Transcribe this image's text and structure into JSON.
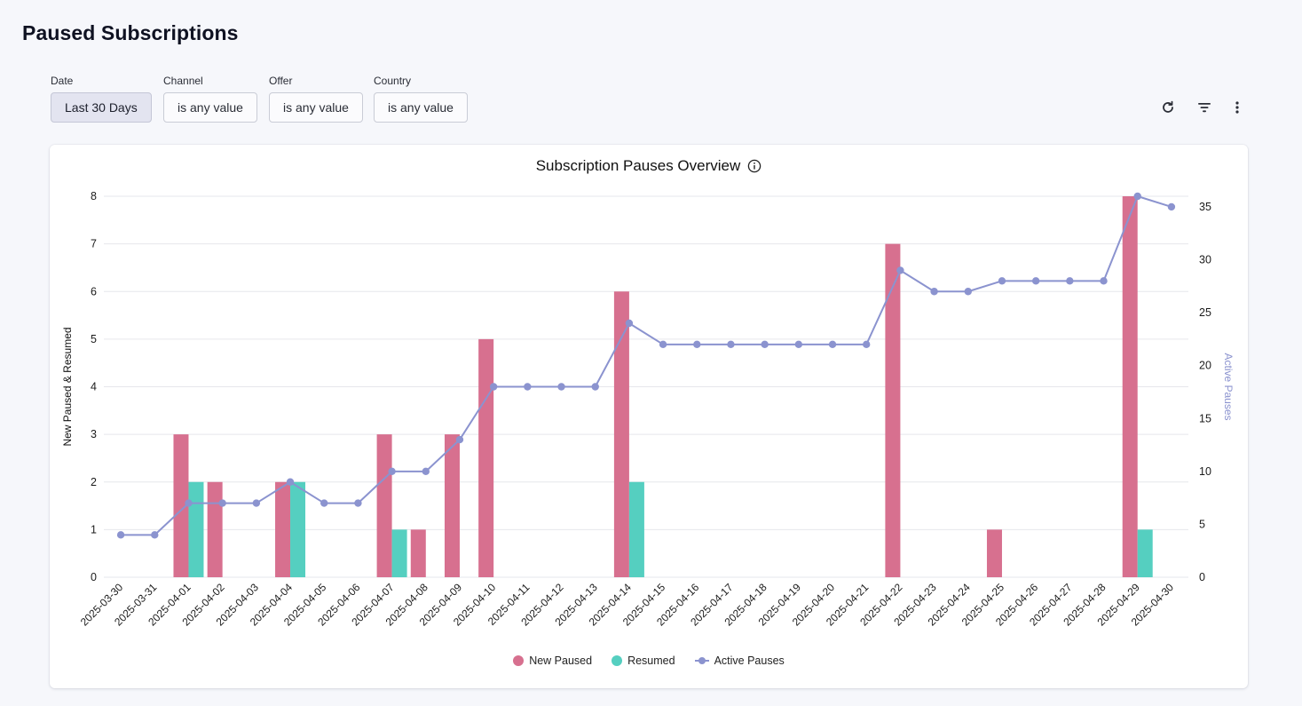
{
  "page": {
    "title": "Paused Subscriptions"
  },
  "filters": [
    {
      "label": "Date",
      "value": "Last 30 Days",
      "selected": true
    },
    {
      "label": "Channel",
      "value": "is any value",
      "selected": false
    },
    {
      "label": "Offer",
      "value": "is any value",
      "selected": false
    },
    {
      "label": "Country",
      "value": "is any value",
      "selected": false
    }
  ],
  "toolbar": {
    "icons": [
      "refresh-icon",
      "filter-icon",
      "more-vertical-icon"
    ]
  },
  "colors": {
    "new_paused": "#d7708f",
    "resumed": "#55cfc0",
    "active_pauses": "#8b93cf",
    "grid": "#e6e7ec"
  },
  "chart_data": {
    "type": "bar",
    "title": "Subscription Pauses Overview",
    "ylabel": "New Paused & Resumed",
    "y2label": "Active Pauses",
    "ylim": [
      0,
      8
    ],
    "y2lim": [
      0,
      36
    ],
    "yticks": [
      0,
      1,
      2,
      3,
      4,
      5,
      6,
      7,
      8
    ],
    "y2ticks": [
      0,
      5,
      10,
      15,
      20,
      25,
      30,
      35
    ],
    "grid": true,
    "legend_position": "bottom",
    "categories": [
      "2025-03-30",
      "2025-03-31",
      "2025-04-01",
      "2025-04-02",
      "2025-04-03",
      "2025-04-04",
      "2025-04-05",
      "2025-04-06",
      "2025-04-07",
      "2025-04-08",
      "2025-04-09",
      "2025-04-10",
      "2025-04-11",
      "2025-04-12",
      "2025-04-13",
      "2025-04-14",
      "2025-04-15",
      "2025-04-16",
      "2025-04-17",
      "2025-04-18",
      "2025-04-19",
      "2025-04-20",
      "2025-04-21",
      "2025-04-22",
      "2025-04-23",
      "2025-04-24",
      "2025-04-25",
      "2025-04-26",
      "2025-04-27",
      "2025-04-28",
      "2025-04-29",
      "2025-04-30"
    ],
    "series": [
      {
        "name": "New Paused",
        "type": "bar",
        "axis": "left",
        "values": [
          0,
          0,
          3,
          2,
          0,
          2,
          0,
          0,
          3,
          1,
          3,
          5,
          0,
          0,
          0,
          6,
          0,
          0,
          0,
          0,
          0,
          0,
          0,
          7,
          0,
          0,
          1,
          0,
          0,
          0,
          8,
          0
        ]
      },
      {
        "name": "Resumed",
        "type": "bar",
        "axis": "left",
        "values": [
          0,
          0,
          2,
          0,
          0,
          2,
          0,
          0,
          1,
          0,
          0,
          0,
          0,
          0,
          0,
          2,
          0,
          0,
          0,
          0,
          0,
          0,
          0,
          0,
          0,
          0,
          0,
          0,
          0,
          0,
          1,
          0
        ]
      },
      {
        "name": "Active Pauses",
        "type": "line",
        "axis": "right",
        "values": [
          4,
          4,
          7,
          7,
          7,
          9,
          7,
          7,
          10,
          10,
          13,
          18,
          18,
          18,
          18,
          24,
          22,
          22,
          22,
          22,
          22,
          22,
          22,
          29,
          27,
          27,
          28,
          28,
          28,
          28,
          36,
          35
        ]
      }
    ]
  }
}
